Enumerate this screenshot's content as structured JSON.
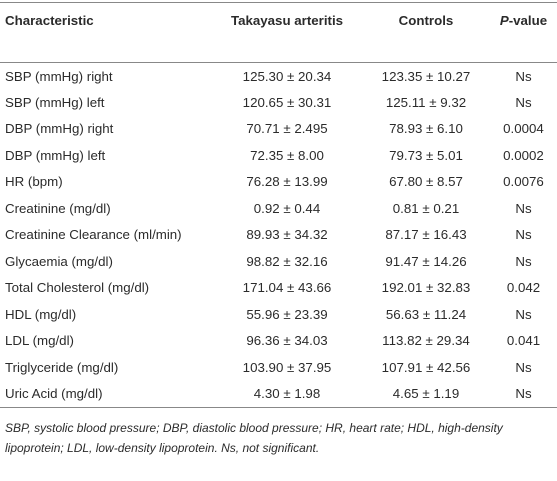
{
  "table": {
    "header": [
      "Characteristic",
      "Takayasu arteritis",
      "Controls",
      {
        "italic": "P",
        "rest": "-value"
      }
    ],
    "rows": [
      [
        "SBP (mmHg) right",
        "125.30 ± 20.34",
        "123.35 ± 10.27",
        "Ns"
      ],
      [
        "SBP (mmHg) left",
        "120.65 ± 30.31",
        "125.11 ± 9.32",
        "Ns"
      ],
      [
        "DBP (mmHg) right",
        "70.71 ± 2.495",
        "78.93 ± 6.10",
        "0.0004"
      ],
      [
        "DBP (mmHg) left",
        "72.35 ± 8.00",
        "79.73 ± 5.01",
        "0.0002"
      ],
      [
        "HR (bpm)",
        "76.28 ± 13.99",
        "67.80 ± 8.57",
        "0.0076"
      ],
      [
        "Creatinine (mg/dl)",
        "0.92 ± 0.44",
        "0.81 ± 0.21",
        "Ns"
      ],
      [
        "Creatinine Clearance (ml/min)",
        "89.93 ± 34.32",
        "87.17 ± 16.43",
        "Ns"
      ],
      [
        "Glycaemia (mg/dl)",
        "98.82 ± 32.16",
        "91.47 ± 14.26",
        "Ns"
      ],
      [
        "Total Cholesterol (mg/dl)",
        "171.04 ± 43.66",
        "192.01 ± 32.83",
        "0.042"
      ],
      [
        "HDL (mg/dl)",
        "55.96 ± 23.39",
        "56.63 ± 11.24",
        "Ns"
      ],
      [
        "LDL (mg/dl)",
        "96.36 ± 34.03",
        "113.82 ± 29.34",
        "0.041"
      ],
      [
        "Triglyceride (mg/dl)",
        "103.90 ± 37.95",
        "107.91 ± 42.56",
        "Ns"
      ],
      [
        "Uric Acid (mg/dl)",
        "4.30 ± 1.98",
        "4.65 ± 1.19",
        "Ns"
      ]
    ]
  },
  "footnote": "SBP, systolic blood pressure; DBP, diastolic blood pressure; HR, heart rate; HDL, high-density lipoprotein; LDL, low-density lipoprotein. Ns, not significant."
}
